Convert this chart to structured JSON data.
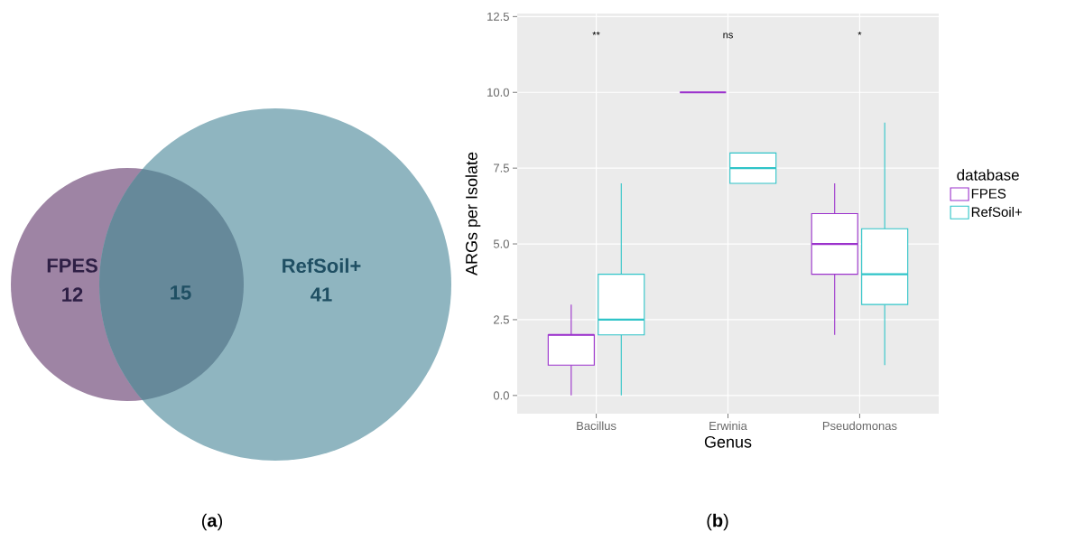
{
  "chart_data": [
    {
      "type": "other",
      "categories": [
        "FPES",
        null,
        "RefSoil+"
      ],
      "values": [
        12,
        15,
        41
      ],
      "colors": [
        "#9e84a4",
        "#66899a",
        "#8fb5c0"
      ],
      "data_labels": true,
      "annotations": [
        "(**a**)"
      ]
    },
    {
      "type": "box",
      "categories": [
        "Bacillus",
        "Erwinia",
        "Pseudomonas"
      ],
      "xlabel": "Genus",
      "ylabel": "ARGs per Isolate",
      "legend_title": "database",
      "legend": "right",
      "grid": true,
      "ylim": [
        -0.6,
        12.6
      ],
      "yticks": [
        {
          "value": 0,
          "label": "0.0"
        },
        {
          "value": 2.5,
          "label": "2.5"
        },
        {
          "value": 5,
          "label": "5.0"
        },
        {
          "value": 7.5,
          "label": "7.5"
        },
        {
          "value": 10,
          "label": "10.0"
        },
        {
          "value": 12.5,
          "label": "12.5"
        }
      ],
      "series": [
        {
          "name": "FPES",
          "color": "#9b32cc",
          "boxes": [
            {
              "low": 0,
              "q1": 1,
              "median": 2,
              "q3": 2,
              "high": 3
            },
            {
              "low": 10,
              "q1": 10,
              "median": 10,
              "q3": 10,
              "high": 10
            },
            {
              "low": 2,
              "q1": 4,
              "median": 5,
              "q3": 6,
              "high": 7
            }
          ]
        },
        {
          "name": "RefSoil+",
          "color": "#2fc4c8",
          "boxes": [
            {
              "low": 0,
              "q1": 2,
              "median": 2.5,
              "q3": 4,
              "high": 7
            },
            {
              "low": 7,
              "q1": 7,
              "median": 7.5,
              "q3": 8,
              "high": 8
            },
            {
              "low": 1,
              "q1": 3,
              "median": 4,
              "q3": 5.5,
              "high": 9
            }
          ]
        }
      ],
      "annotations": [
        "**",
        "ns",
        "*",
        "(**b**)"
      ]
    }
  ]
}
